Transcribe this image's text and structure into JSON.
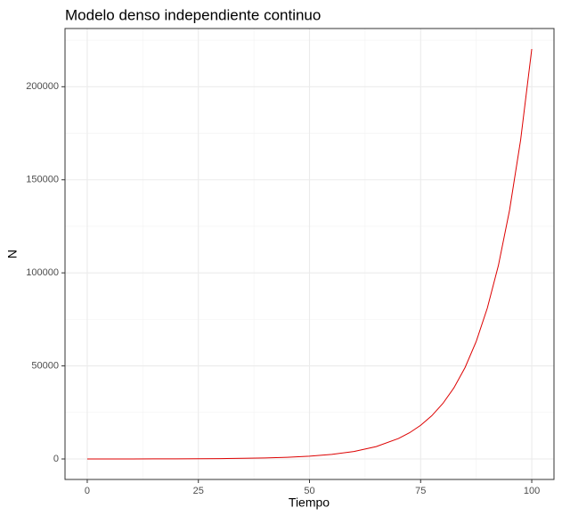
{
  "chart_data": {
    "type": "line",
    "title": "Modelo denso independiente continuo",
    "x_label": "Tiempo",
    "y_label": "N",
    "x": [
      0,
      5,
      10,
      15,
      20,
      25,
      30,
      35,
      40,
      45,
      50,
      55,
      60,
      65,
      70,
      72.5,
      75,
      77.5,
      80,
      82.5,
      85,
      87.5,
      90,
      92.5,
      95,
      97.5,
      100
    ],
    "series": [
      {
        "name": "N",
        "color": "#dd0000",
        "values": [
          10,
          16.5,
          27.2,
          44.8,
          73.9,
          121.8,
          200.9,
          331.2,
          546,
          900,
          1484,
          2447,
          4034,
          6651,
          10966,
          14076,
          18080,
          23212,
          29810,
          38262,
          49144,
          63085,
          81031,
          104004,
          133597,
          171466,
          220265
        ]
      }
    ],
    "xlim": [
      -5,
      105
    ],
    "xticks": [
      0,
      25,
      50,
      75,
      100
    ],
    "ylim": [
      -11013,
      231278
    ],
    "yticks": [
      0,
      50000,
      100000,
      150000,
      200000
    ],
    "x_minor_ticks": [
      12.5,
      37.5,
      62.5,
      87.5
    ],
    "y_minor_ticks": [
      25000,
      75000,
      125000,
      175000,
      225000
    ],
    "grid": true
  }
}
